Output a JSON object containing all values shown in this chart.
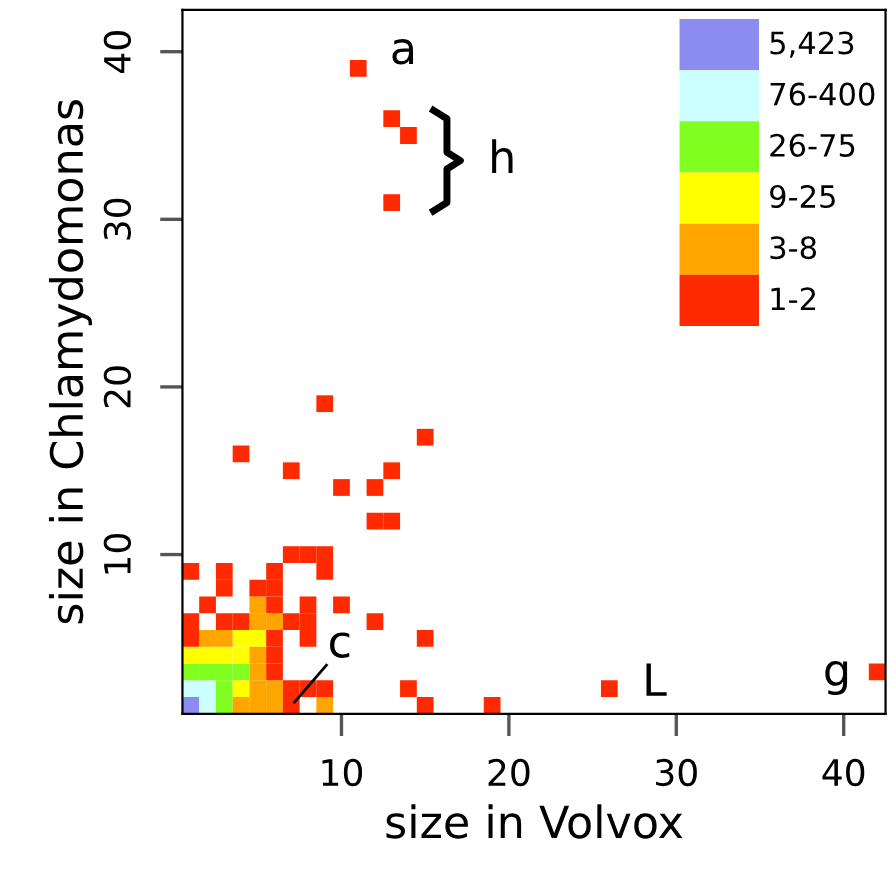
{
  "chart_data": {
    "type": "scatter",
    "xlabel": "size in Volvox",
    "ylabel": "size in Chlamydomonas",
    "xlim": [
      0.5,
      42.5
    ],
    "ylim": [
      0.5,
      42.5
    ],
    "xticks": [
      10,
      20,
      30,
      40
    ],
    "yticks": [
      10,
      20,
      30,
      40
    ],
    "marker": "square",
    "grid": false,
    "legend": "top right",
    "series": [
      {
        "name": "5,423",
        "color": "#8c8cf0",
        "x": [
          1
        ],
        "values": [
          1
        ]
      },
      {
        "name": "76-400",
        "color": "#ccffff",
        "x": [
          2,
          1,
          2
        ],
        "values": [
          1,
          2,
          2
        ]
      },
      {
        "name": "26-75",
        "color": "#80ff20",
        "x": [
          3,
          3,
          1,
          2,
          3,
          4
        ],
        "values": [
          1,
          2,
          3,
          3,
          3,
          3
        ]
      },
      {
        "name": "9-25",
        "color": "#ffff00",
        "x": [
          4,
          1,
          2,
          3,
          4,
          4,
          5
        ],
        "values": [
          2,
          4,
          4,
          4,
          4,
          5,
          5
        ]
      },
      {
        "name": "3-8",
        "color": "#ffa500",
        "x": [
          4,
          5,
          6,
          9,
          5,
          6,
          5,
          5,
          2,
          3,
          5,
          6,
          5
        ],
        "values": [
          1,
          1,
          1,
          1,
          2,
          2,
          3,
          4,
          5,
          5,
          6,
          6,
          7
        ]
      },
      {
        "name": "1-2",
        "color": "#ff2a00",
        "x": [
          7,
          15,
          19,
          7,
          8,
          9,
          14,
          26,
          6,
          42,
          6,
          1,
          6,
          8,
          15,
          1,
          3,
          4,
          7,
          8,
          12,
          2,
          6,
          8,
          10,
          3,
          5,
          6,
          1,
          3,
          6,
          9,
          7,
          8,
          9,
          12,
          13,
          10,
          12,
          7,
          13,
          4,
          15,
          9,
          13,
          14,
          13,
          11
        ],
        "values": [
          1,
          1,
          1,
          2,
          2,
          2,
          2,
          2,
          3,
          3,
          4,
          5,
          5,
          5,
          5,
          6,
          6,
          6,
          6,
          6,
          6,
          7,
          7,
          7,
          7,
          8,
          8,
          8,
          9,
          9,
          9,
          9,
          10,
          10,
          10,
          12,
          12,
          14,
          14,
          15,
          15,
          16,
          17,
          19,
          31,
          35,
          36,
          39
        ]
      }
    ],
    "annotations": [
      {
        "text": "a",
        "x": 11,
        "y": 39
      },
      {
        "text": "h",
        "x": 14,
        "y": 35
      },
      {
        "text": "c",
        "x": 7,
        "y": 1
      },
      {
        "text": "L",
        "x": 26,
        "y": 2
      },
      {
        "text": "g",
        "x": 42,
        "y": 3
      }
    ]
  }
}
